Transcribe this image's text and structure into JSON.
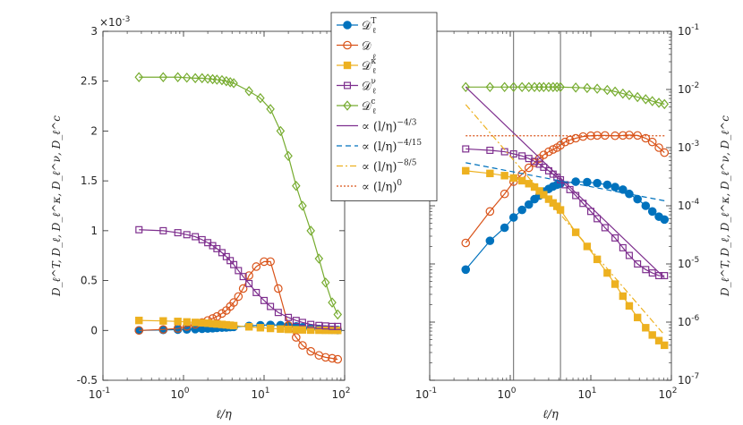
{
  "chart_data": [
    {
      "type": "line",
      "xscale": "log",
      "yscale": "linear",
      "xlim": [
        0.1,
        100
      ],
      "ylim": [
        -0.5,
        3
      ],
      "y_multiplier_label": "×10-3",
      "xlabel": "ℓ/η",
      "ylabel": "D_ℓ^T, D_ℓ, D_ℓ^κ, D_ℓ^ν, D_ℓ^c",
      "xticks": [
        {
          "v": 0.1,
          "label": "10",
          "exp": "-1"
        },
        {
          "v": 1,
          "label": "10",
          "exp": "0"
        },
        {
          "v": 10,
          "label": "10",
          "exp": "1"
        },
        {
          "v": 100,
          "label": "10",
          "exp": "2"
        }
      ],
      "yticks": [
        -0.5,
        0,
        0.5,
        1,
        1.5,
        2,
        2.5,
        3
      ],
      "series": [
        {
          "name": "DT",
          "x": [
            0.28,
            0.56,
            0.85,
            1.1,
            1.4,
            1.7,
            2.0,
            2.3,
            2.6,
            3.0,
            3.4,
            3.8,
            4.2,
            6.5,
            9.0,
            12,
            16,
            20,
            25,
            30,
            38,
            48,
            58,
            70,
            82
          ],
          "y": [
            0.0,
            0.005,
            0.008,
            0.01,
            0.013,
            0.016,
            0.019,
            0.022,
            0.025,
            0.028,
            0.03,
            0.033,
            0.035,
            0.045,
            0.052,
            0.055,
            0.053,
            0.048,
            0.04,
            0.031,
            0.022,
            0.014,
            0.009,
            0.006,
            0.004
          ]
        },
        {
          "name": "D",
          "x": [
            0.28,
            0.56,
            0.85,
            1.1,
            1.4,
            1.7,
            2.0,
            2.3,
            2.6,
            3.0,
            3.4,
            3.8,
            4.2,
            4.8,
            5.5,
            6.5,
            8.0,
            10,
            12,
            15,
            20,
            25,
            30,
            38,
            48,
            58,
            70,
            82
          ],
          "y": [
            0.0,
            0.01,
            0.02,
            0.04,
            0.06,
            0.08,
            0.1,
            0.12,
            0.14,
            0.17,
            0.2,
            0.24,
            0.28,
            0.34,
            0.42,
            0.55,
            0.64,
            0.69,
            0.69,
            0.42,
            0.05,
            -0.07,
            -0.15,
            -0.21,
            -0.25,
            -0.27,
            -0.28,
            -0.29
          ]
        },
        {
          "name": "Dk",
          "x": [
            0.28,
            0.56,
            0.85,
            1.1,
            1.4,
            1.7,
            2.0,
            2.3,
            2.6,
            3.0,
            3.4,
            3.8,
            4.2,
            6.5,
            9.0,
            12,
            16,
            20,
            25,
            30,
            38,
            48,
            58,
            70,
            82
          ],
          "y": [
            0.1,
            0.095,
            0.09,
            0.085,
            0.08,
            0.076,
            0.072,
            0.068,
            0.064,
            0.06,
            0.056,
            0.052,
            0.048,
            0.036,
            0.027,
            0.02,
            0.014,
            0.01,
            0.007,
            0.005,
            0.003,
            0.002,
            0.001,
            0.0008,
            0.0005
          ]
        },
        {
          "name": "Dv",
          "x": [
            0.28,
            0.56,
            0.85,
            1.1,
            1.4,
            1.7,
            2.0,
            2.3,
            2.6,
            3.0,
            3.4,
            3.8,
            4.2,
            4.8,
            5.5,
            6.5,
            8.0,
            10,
            12,
            15,
            20,
            25,
            30,
            38,
            48,
            58,
            70,
            82
          ],
          "y": [
            1.01,
            1.0,
            0.98,
            0.96,
            0.94,
            0.91,
            0.88,
            0.85,
            0.82,
            0.78,
            0.74,
            0.7,
            0.66,
            0.6,
            0.54,
            0.47,
            0.38,
            0.3,
            0.24,
            0.18,
            0.13,
            0.1,
            0.08,
            0.06,
            0.05,
            0.045,
            0.04,
            0.04
          ]
        },
        {
          "name": "Dc",
          "x": [
            0.28,
            0.56,
            0.85,
            1.1,
            1.4,
            1.7,
            2.0,
            2.3,
            2.6,
            3.0,
            3.4,
            3.8,
            4.2,
            6.5,
            9.0,
            12,
            16,
            20,
            25,
            30,
            38,
            48,
            58,
            70,
            82
          ],
          "y": [
            2.54,
            2.54,
            2.54,
            2.535,
            2.53,
            2.53,
            2.525,
            2.52,
            2.515,
            2.51,
            2.5,
            2.49,
            2.48,
            2.4,
            2.33,
            2.22,
            2.0,
            1.75,
            1.45,
            1.25,
            1.0,
            0.72,
            0.48,
            0.28,
            0.16
          ]
        }
      ]
    },
    {
      "type": "line",
      "xscale": "log",
      "yscale": "log",
      "xlim": [
        0.1,
        100
      ],
      "ylim": [
        1e-07,
        0.1
      ],
      "xlabel": "ℓ/η",
      "ylabel": "D_ℓ^T, D_ℓ, D_ℓ^κ, D_ℓ^ν, D_ℓ^c",
      "y_axis_location": "right",
      "vertical_lines": [
        1.1,
        4.2
      ],
      "xticks": [
        {
          "v": 0.1,
          "label": "10",
          "exp": "-1"
        },
        {
          "v": 1,
          "label": "10",
          "exp": "0"
        },
        {
          "v": 10,
          "label": "10",
          "exp": "1"
        },
        {
          "v": 100,
          "label": "10",
          "exp": "2"
        }
      ],
      "yticks": [
        {
          "v": 1e-07,
          "label": "10",
          "exp": "-7"
        },
        {
          "v": 1e-06,
          "label": "10",
          "exp": "-6"
        },
        {
          "v": 1e-05,
          "label": "10",
          "exp": "-5"
        },
        {
          "v": 0.0001,
          "label": "10",
          "exp": "-4"
        },
        {
          "v": 0.001,
          "label": "10",
          "exp": "-3"
        },
        {
          "v": 0.01,
          "label": "10",
          "exp": "-2"
        },
        {
          "v": 0.1,
          "label": "10",
          "exp": "-1"
        }
      ],
      "series": [
        {
          "name": "DT",
          "x": [
            0.28,
            0.56,
            0.85,
            1.1,
            1.4,
            1.7,
            2.0,
            2.3,
            2.6,
            3.0,
            3.4,
            3.8,
            4.2,
            6.5,
            9.0,
            12,
            16,
            20,
            25,
            30,
            38,
            48,
            58,
            70,
            82
          ],
          "y": [
            8e-06,
            2.5e-05,
            4.2e-05,
            6.3e-05,
            8.5e-05,
            0.000105,
            0.00013,
            0.00015,
            0.000175,
            0.000195,
            0.000215,
            0.00023,
            0.00024,
            0.00026,
            0.000255,
            0.000245,
            0.00023,
            0.00021,
            0.00019,
            0.00016,
            0.00013,
            0.0001,
            8e-05,
            6.5e-05,
            5.8e-05
          ]
        },
        {
          "name": "D",
          "x": [
            0.28,
            0.56,
            0.85,
            1.1,
            1.4,
            1.7,
            2.0,
            2.3,
            2.6,
            3.0,
            3.4,
            3.8,
            4.2,
            4.8,
            5.5,
            6.5,
            8.0,
            10,
            12,
            15,
            20,
            25,
            30,
            38,
            48,
            58,
            70,
            82
          ],
          "y": [
            2.3e-05,
            8e-05,
            0.00016,
            0.00026,
            0.00035,
            0.00045,
            0.00055,
            0.00065,
            0.00075,
            0.00085,
            0.00093,
            0.001,
            0.0011,
            0.00125,
            0.00135,
            0.00145,
            0.00155,
            0.0016,
            0.00162,
            0.00162,
            0.0016,
            0.00162,
            0.00165,
            0.00162,
            0.00145,
            0.00125,
            0.001,
            0.00082
          ]
        },
        {
          "name": "Dk",
          "x": [
            0.28,
            0.56,
            0.85,
            1.1,
            1.4,
            1.7,
            2.0,
            2.3,
            2.6,
            3.0,
            3.4,
            3.8,
            4.2,
            6.5,
            9.0,
            12,
            16,
            20,
            25,
            30,
            38,
            48,
            58,
            70,
            82
          ],
          "y": [
            0.0004,
            0.00036,
            0.00033,
            0.0003,
            0.00027,
            0.00024,
            0.00021,
            0.00018,
            0.000155,
            0.00013,
            0.000112,
            9.8e-05,
            8.5e-05,
            3.5e-05,
            2e-05,
            1.2e-05,
            7e-06,
            4.5e-06,
            2.8e-06,
            1.9e-06,
            1.2e-06,
            8e-07,
            6e-07,
            4.8e-07,
            4e-07
          ]
        },
        {
          "name": "Dv",
          "x": [
            0.28,
            0.56,
            0.85,
            1.1,
            1.4,
            1.7,
            2.0,
            2.3,
            2.6,
            3.0,
            3.4,
            3.8,
            4.2,
            4.8,
            5.5,
            6.5,
            8.0,
            10,
            12,
            15,
            20,
            25,
            30,
            38,
            48,
            58,
            70,
            82
          ],
          "y": [
            0.00095,
            0.0009,
            0.00085,
            0.00078,
            0.00072,
            0.00065,
            0.00058,
            0.00052,
            0.00046,
            0.0004,
            0.00035,
            0.00031,
            0.00028,
            0.00023,
            0.00019,
            0.00015,
            0.00011,
            8e-05,
            6e-05,
            4.2e-05,
            2.8e-05,
            1.9e-05,
            1.4e-05,
            1e-05,
            8e-06,
            7e-06,
            6.3e-06,
            6.3e-06
          ]
        },
        {
          "name": "Dc",
          "x": [
            0.28,
            0.56,
            0.85,
            1.1,
            1.4,
            1.7,
            2.0,
            2.3,
            2.6,
            3.0,
            3.4,
            3.8,
            4.2,
            6.5,
            9.0,
            12,
            16,
            20,
            25,
            30,
            38,
            48,
            58,
            70,
            82
          ],
          "y": [
            0.011,
            0.011,
            0.011,
            0.011,
            0.011,
            0.011,
            0.011,
            0.011,
            0.011,
            0.011,
            0.011,
            0.011,
            0.011,
            0.0108,
            0.0106,
            0.0103,
            0.0098,
            0.0092,
            0.0085,
            0.008,
            0.0074,
            0.0068,
            0.0063,
            0.0059,
            0.0056
          ]
        },
        {
          "name": "p43",
          "style": "solid",
          "x": [
            0.28,
            82
          ],
          "y": [
            0.011,
            5.8e-06
          ]
        },
        {
          "name": "p415",
          "style": "dashed",
          "x": [
            0.28,
            82
          ],
          "y": [
            0.00055,
            0.000122
          ]
        },
        {
          "name": "p85",
          "style": "dashdot",
          "x": [
            0.28,
            82
          ],
          "y": [
            0.0055,
            6e-07
          ]
        },
        {
          "name": "p0",
          "style": "dotted",
          "x": [
            0.28,
            82
          ],
          "y": [
            0.0016,
            0.0016
          ]
        }
      ]
    }
  ],
  "colors": {
    "DT": "#0072bd",
    "D": "#d95319",
    "Dk": "#edb120",
    "Dv": "#7e2f8e",
    "Dc": "#77ac30",
    "p43": "#7e2f8e",
    "p415": "#0072bd",
    "p85": "#edb120",
    "p0": "#d95319",
    "axis": "#262626",
    "vline": "#555555"
  },
  "markers": {
    "DT": "filled-circle",
    "D": "open-circle",
    "Dk": "filled-square",
    "Dv": "open-square",
    "Dc": "open-diamond"
  },
  "legend": {
    "entries": [
      {
        "key": "DT",
        "base": "𝒟",
        "sup": "T",
        "sub": "ℓ"
      },
      {
        "key": "D",
        "base": "𝒟",
        "sup": "",
        "sub": "ℓ"
      },
      {
        "key": "Dk",
        "base": "𝒟",
        "sup": "κ",
        "sub": "ℓ"
      },
      {
        "key": "Dv",
        "base": "𝒟",
        "sup": "ν",
        "sub": "ℓ"
      },
      {
        "key": "Dc",
        "base": "𝒟",
        "sup": "c",
        "sub": "ℓ"
      },
      {
        "key": "p43",
        "text": "∝ (l/η)",
        "exp": "−4/3"
      },
      {
        "key": "p415",
        "text": "∝ (l/η)",
        "exp": "−4/15"
      },
      {
        "key": "p85",
        "text": "∝ (l/η)",
        "exp": "−8/5"
      },
      {
        "key": "p0",
        "text": "∝ (l/η)",
        "exp": "0"
      }
    ]
  }
}
